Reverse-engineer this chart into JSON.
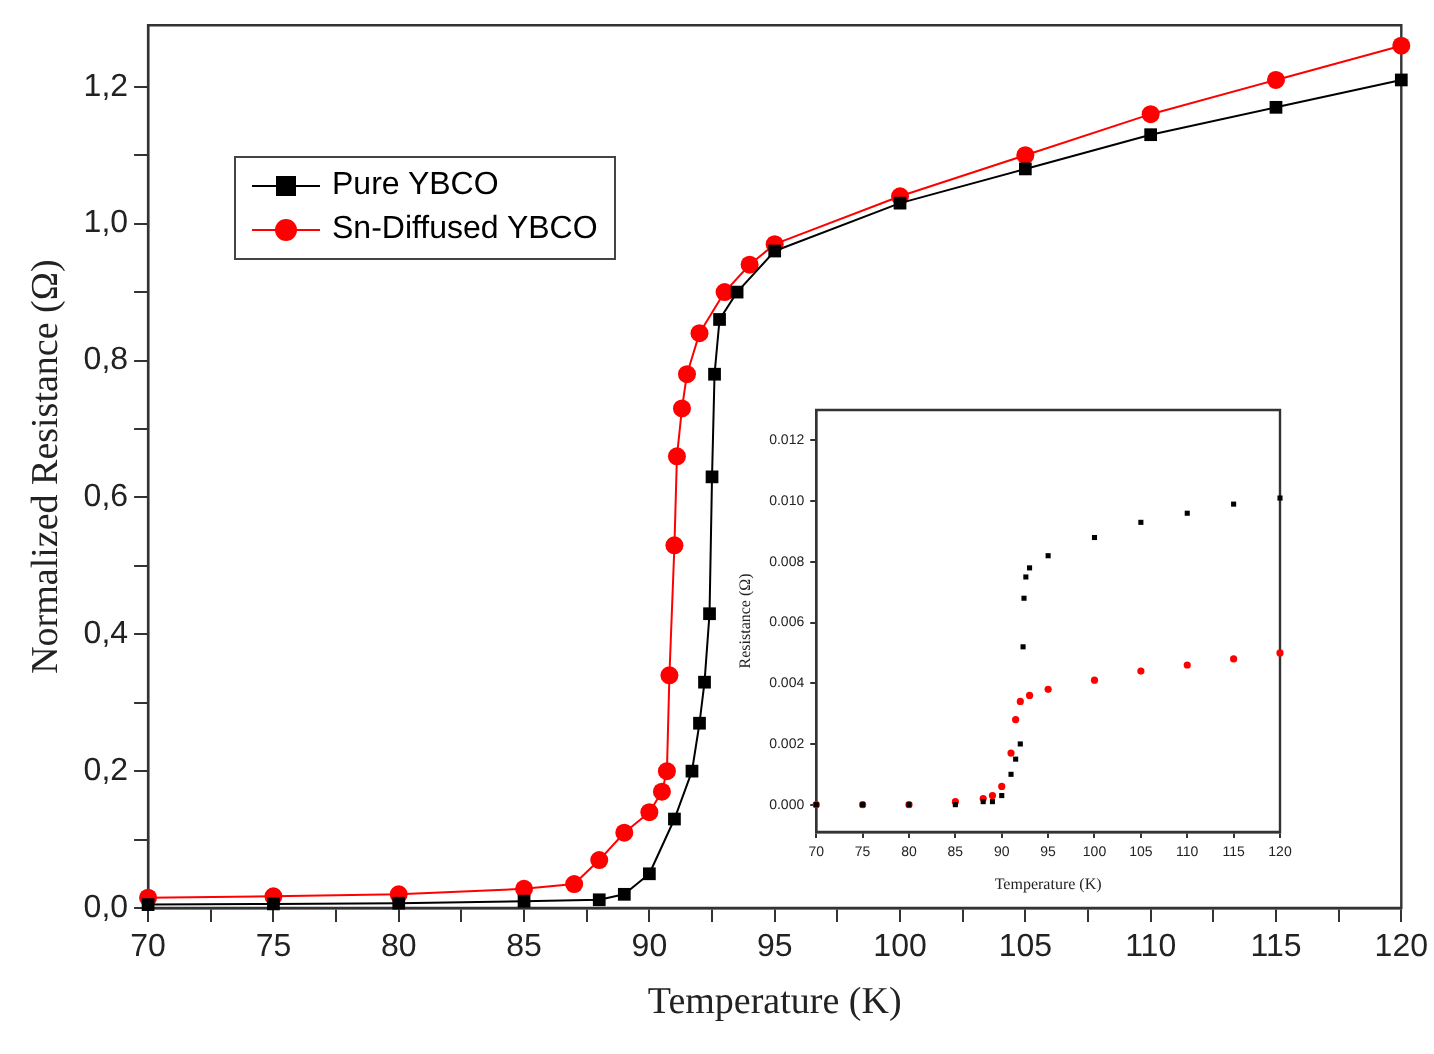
{
  "chart_data": [
    {
      "type": "line",
      "xlabel": "Temperature (K)",
      "ylabel": "Normalized Resistance (Ω)",
      "xlim": [
        70,
        120
      ],
      "ylim": [
        0,
        1.29
      ],
      "xticks": [
        70,
        {
          "value": 72.5,
          "label": null
        },
        75,
        {
          "value": 77.5,
          "label": null
        },
        80,
        {
          "value": 82.5,
          "label": null
        },
        85,
        {
          "value": 87.5,
          "label": null
        },
        90,
        {
          "value": 92.5,
          "label": null
        },
        95,
        {
          "value": 97.5,
          "label": null
        },
        100,
        {
          "value": 102.5,
          "label": null
        },
        105,
        {
          "value": 107.5,
          "label": null
        },
        110,
        {
          "value": 112.5,
          "label": null
        },
        115,
        {
          "value": 117.5,
          "label": null
        },
        120
      ],
      "yticks": [
        {
          "value": 0,
          "label": "0,0"
        },
        {
          "value": 0.1,
          "label": null
        },
        {
          "value": 0.2,
          "label": "0,2"
        },
        {
          "value": 0.3,
          "label": null
        },
        {
          "value": 0.4,
          "label": "0,4"
        },
        {
          "value": 0.5,
          "label": null
        },
        {
          "value": 0.6,
          "label": "0,6"
        },
        {
          "value": 0.7,
          "label": null
        },
        {
          "value": 0.8,
          "label": "0,8"
        },
        {
          "value": 0.9,
          "label": null
        },
        {
          "value": 1.0,
          "label": "1,0"
        },
        {
          "value": 1.1,
          "label": null
        },
        {
          "value": 1.2,
          "label": "1,2"
        }
      ],
      "grid": false,
      "legend": "top left",
      "line_style": "solid",
      "series": [
        {
          "name": "Pure YBCO",
          "color": "#000000",
          "marker": "square",
          "x": [
            70,
            75,
            80,
            85,
            88,
            89,
            90,
            91,
            91.7,
            92,
            92.2,
            92.4,
            92.5,
            92.6,
            92.8,
            93.5,
            95,
            100,
            105,
            110,
            115,
            120
          ],
          "values": [
            0.005,
            0.006,
            0.007,
            0.01,
            0.012,
            0.02,
            0.05,
            0.13,
            0.2,
            0.27,
            0.33,
            0.43,
            0.63,
            0.78,
            0.86,
            0.9,
            0.96,
            1.03,
            1.08,
            1.13,
            1.17,
            1.21
          ]
        },
        {
          "name": "Sn-Diffused YBCO",
          "color": "#ff0000",
          "marker": "circle",
          "x": [
            70,
            75,
            80,
            85,
            87,
            88,
            89,
            90,
            90.5,
            90.7,
            90.8,
            91,
            91.1,
            91.3,
            91.5,
            92,
            93,
            94,
            95,
            100,
            105,
            110,
            115,
            120
          ],
          "values": [
            0.015,
            0.017,
            0.02,
            0.028,
            0.035,
            0.07,
            0.11,
            0.14,
            0.17,
            0.2,
            0.34,
            0.53,
            0.66,
            0.73,
            0.78,
            0.84,
            0.9,
            0.94,
            0.97,
            1.04,
            1.1,
            1.16,
            1.21,
            1.26
          ]
        }
      ]
    },
    {
      "type": "scatter",
      "xlabel": "Temperature (K)",
      "ylabel": "Resistance (Ω)",
      "xlim": [
        70,
        120
      ],
      "ylim": [
        -0.0009,
        0.013
      ],
      "xticks": [
        70,
        75,
        80,
        85,
        90,
        95,
        100,
        105,
        110,
        115,
        120
      ],
      "yticks": [
        {
          "value": 0,
          "label": "0.000"
        },
        {
          "value": 0.002,
          "label": "0.002"
        },
        {
          "value": 0.004,
          "label": "0.004"
        },
        {
          "value": 0.006,
          "label": "0.006"
        },
        {
          "value": 0.008,
          "label": "0.008"
        },
        {
          "value": 0.01,
          "label": "0.010"
        },
        {
          "value": 0.012,
          "label": "0.012"
        }
      ],
      "grid": false,
      "series": [
        {
          "color": "#000000",
          "marker": "square",
          "x": [
            70,
            75,
            80,
            85,
            88,
            89,
            90,
            91,
            91.5,
            92,
            92.3,
            92.4,
            92.6,
            93,
            95,
            100,
            105,
            110,
            115,
            120
          ],
          "values": [
            0,
            0,
            0,
            0,
            0.0001,
            0.0001,
            0.0003,
            0.001,
            0.0015,
            0.002,
            0.0052,
            0.0068,
            0.0075,
            0.0078,
            0.0082,
            0.0088,
            0.0093,
            0.0096,
            0.0099,
            0.0101
          ]
        },
        {
          "color": "#ff0000",
          "marker": "circle",
          "x": [
            70,
            75,
            80,
            85,
            88,
            89,
            90,
            91,
            91.5,
            92,
            93,
            95,
            100,
            105,
            110,
            115,
            120
          ],
          "values": [
            0,
            0,
            0,
            0.0001,
            0.0002,
            0.0003,
            0.0006,
            0.0017,
            0.0028,
            0.0034,
            0.0036,
            0.0038,
            0.0041,
            0.0044,
            0.0046,
            0.0048,
            0.005
          ]
        }
      ]
    }
  ]
}
